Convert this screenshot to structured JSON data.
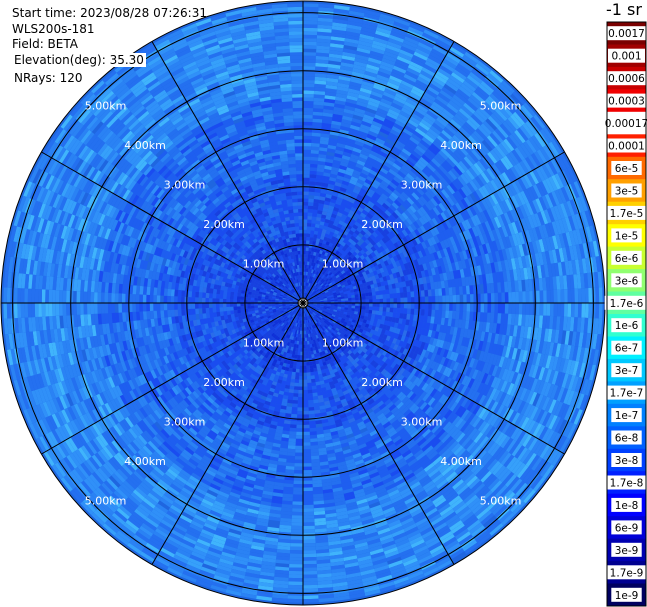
{
  "header": {
    "start_time": "Start time: 2023/08/28 07:26:31",
    "instrument": "WLS200s-181",
    "field": "Field: BETA",
    "elevation": "Elevation(deg): 35.30",
    "nrays": "NRays: 120"
  },
  "colorbar": {
    "unit_label": "-1 sr",
    "labels": [
      "0.0017",
      "0.001",
      "0.0006",
      "0.0003",
      "0.00017",
      "0.0001",
      "6e-5",
      "3e-5",
      "1.7e-5",
      "1e-5",
      "6e-6",
      "3e-6",
      "1.7e-6",
      "1e-6",
      "6e-7",
      "3e-7",
      "1.7e-7",
      "1e-7",
      "6e-8",
      "3e-8",
      "1.7e-8",
      "1e-8",
      "6e-9",
      "3e-9",
      "1.7e-9",
      "1e-9"
    ],
    "colors": [
      "#7a0000",
      "#a00000",
      "#c80000",
      "#f00000",
      "#ffffff",
      "#ff2000",
      "#ff6a00",
      "#ffa000",
      "#ffd000",
      "#ffff00",
      "#c8ff30",
      "#90ff70",
      "#60ffa0",
      "#30ffd0",
      "#00f0ff",
      "#00c8ff",
      "#00a0ff",
      "#0080ff",
      "#0060ff",
      "#0040ff",
      "#0020ff",
      "#0000ff",
      "#0000d8",
      "#0000b0",
      "#000090",
      "#000060"
    ]
  },
  "chart_data": {
    "type": "heatmap",
    "projection": "polar (PPI scan)",
    "field": "BETA",
    "range_ring_labels_km": [
      "1.00km",
      "2.00km",
      "3.00km",
      "4.00km",
      "5.00km"
    ],
    "range_rings_km": [
      1,
      2,
      3,
      4,
      5
    ],
    "max_range_km": 5.2,
    "radial_spokes_deg": [
      0,
      30,
      60,
      90,
      120,
      150,
      180,
      210,
      240,
      270,
      300,
      330
    ],
    "nrays": 120,
    "dominant_values": "mostly 1e-8 to 1.7e-7 (blue to light blue), near-center lower values around 1e-8",
    "colormap_range": [
      1e-09,
      0.0017
    ]
  }
}
